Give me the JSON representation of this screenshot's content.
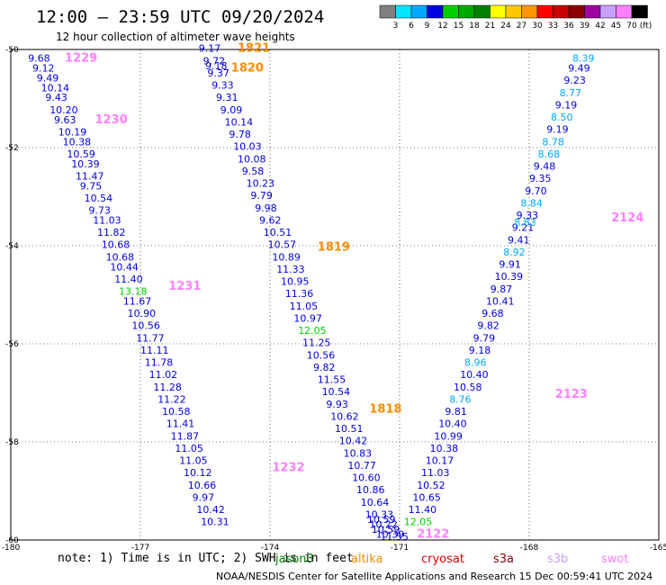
{
  "title": "12:00 – 23:59 UTC 09/20/2024",
  "subtitle": "12 hour collection of altimeter wave heights",
  "footer": "NOAA/NESDIS Center for Satellite Applications and Research   15 Dec 00:59:41 UTC 2024",
  "note": "note:  1) Time is in UTC; 2) SWH is in feet",
  "colorbar": {
    "unit": "(ft)",
    "ticks": [
      "3",
      "6",
      "9",
      "12",
      "15",
      "18",
      "21",
      "24",
      "27",
      "30",
      "33",
      "36",
      "39",
      "42",
      "45",
      "70"
    ],
    "colors": [
      "#7f7f7f",
      "#00e5ff",
      "#00a8ff",
      "#0000e0",
      "#00d000",
      "#00a800",
      "#008000",
      "#ffff00",
      "#ffc800",
      "#ff9600",
      "#ff0000",
      "#c80000",
      "#8b0000",
      "#a000a0",
      "#c8a0ff",
      "#ff80ff",
      "#000000"
    ]
  },
  "chart_data": {
    "type": "scatter",
    "xlim": [
      -180,
      -165
    ],
    "ylim": [
      -60,
      -50
    ],
    "x_ticks": [
      "-180",
      "-177",
      "-174",
      "-171",
      "-168",
      "-165"
    ],
    "y_ticks": [
      "-50",
      "-52",
      "-54",
      "-56",
      "-58",
      "-60"
    ],
    "legend": [
      {
        "name": "jason3",
        "color": "#008000"
      },
      {
        "name": "altika",
        "color": "#ff8c00"
      },
      {
        "name": "cryosat",
        "color": "#e00000"
      },
      {
        "name": "s3a",
        "color": "#8b0000"
      },
      {
        "name": "s3b",
        "color": "#c8a0ff"
      },
      {
        "name": "swot",
        "color": "#ff80ff"
      }
    ],
    "time_labels": [
      {
        "text": "1229",
        "lon": -178.75,
        "lat": -50.25,
        "color": "#ff80ff"
      },
      {
        "text": "1230",
        "lon": -178.05,
        "lat": -51.5,
        "color": "#ff80ff"
      },
      {
        "text": "1231",
        "lon": -176.35,
        "lat": -54.9,
        "color": "#ff80ff"
      },
      {
        "text": "1232",
        "lon": -173.95,
        "lat": -58.6,
        "color": "#ff80ff"
      },
      {
        "text": "1821",
        "lon": -174.75,
        "lat": -50.05,
        "color": "#ff8c00"
      },
      {
        "text": "1820",
        "lon": -174.9,
        "lat": -50.45,
        "color": "#ff8c00"
      },
      {
        "text": "1819",
        "lon": -172.9,
        "lat": -54.1,
        "color": "#ff8c00"
      },
      {
        "text": "1818",
        "lon": -171.7,
        "lat": -57.4,
        "color": "#ff8c00"
      },
      {
        "text": "2122",
        "lon": -170.6,
        "lat": -59.95,
        "color": "#ff80ff"
      },
      {
        "text": "2123",
        "lon": -167.4,
        "lat": -57.1,
        "color": "#ff80ff"
      },
      {
        "text": "2124",
        "lon": -166.1,
        "lat": -53.5,
        "color": "#ff80ff"
      }
    ],
    "series": [
      {
        "name": "track 1229-1232",
        "points": [
          {
            "lon": -179.6,
            "lat": -50.25,
            "v": "9.68",
            "c": "#0000e0"
          },
          {
            "lon": -179.5,
            "lat": -50.45,
            "v": "9.12",
            "c": "#0000e0"
          },
          {
            "lon": -179.4,
            "lat": -50.65,
            "v": "9.49",
            "c": "#0000e0"
          },
          {
            "lon": -179.3,
            "lat": -50.85,
            "v": "10.14",
            "c": "#0000e0"
          },
          {
            "lon": -179.2,
            "lat": -51.05,
            "v": "9.43",
            "c": "#0000e0"
          },
          {
            "lon": -179.1,
            "lat": -51.3,
            "v": "10.20",
            "c": "#0000e0"
          },
          {
            "lon": -179.0,
            "lat": -51.5,
            "v": "9.63",
            "c": "#0000e0"
          },
          {
            "lon": -178.9,
            "lat": -51.75,
            "v": "10.19",
            "c": "#0000e0"
          },
          {
            "lon": -178.8,
            "lat": -51.95,
            "v": "10.38",
            "c": "#0000e0"
          },
          {
            "lon": -178.7,
            "lat": -52.2,
            "v": "10.59",
            "c": "#0000e0"
          },
          {
            "lon": -178.6,
            "lat": -52.4,
            "v": "10.39",
            "c": "#0000e0"
          },
          {
            "lon": -178.5,
            "lat": -52.65,
            "v": "11.47",
            "c": "#0000e0"
          },
          {
            "lon": -178.4,
            "lat": -52.85,
            "v": "9.75",
            "c": "#0000e0"
          },
          {
            "lon": -178.3,
            "lat": -53.1,
            "v": "10.54",
            "c": "#0000e0"
          },
          {
            "lon": -178.2,
            "lat": -53.35,
            "v": "9.73",
            "c": "#0000e0"
          },
          {
            "lon": -178.1,
            "lat": -53.55,
            "v": "11.03",
            "c": "#0000e0"
          },
          {
            "lon": -178.0,
            "lat": -53.8,
            "v": "11.82",
            "c": "#0000e0"
          },
          {
            "lon": -177.9,
            "lat": -54.05,
            "v": "10.68",
            "c": "#0000e0"
          },
          {
            "lon": -177.8,
            "lat": -54.3,
            "v": "10.68",
            "c": "#0000e0"
          },
          {
            "lon": -177.7,
            "lat": -54.5,
            "v": "10.44",
            "c": "#0000e0"
          },
          {
            "lon": -177.6,
            "lat": -54.75,
            "v": "11.40",
            "c": "#0000e0"
          },
          {
            "lon": -177.5,
            "lat": -55.0,
            "v": "13.18",
            "c": "#00d000"
          },
          {
            "lon": -177.4,
            "lat": -55.2,
            "v": "11.67",
            "c": "#0000e0"
          },
          {
            "lon": -177.3,
            "lat": -55.45,
            "v": "10.90",
            "c": "#0000e0"
          },
          {
            "lon": -177.2,
            "lat": -55.7,
            "v": "10.56",
            "c": "#0000e0"
          },
          {
            "lon": -177.1,
            "lat": -55.95,
            "v": "11.77",
            "c": "#0000e0"
          },
          {
            "lon": -177.0,
            "lat": -56.2,
            "v": "11.11",
            "c": "#0000e0"
          },
          {
            "lon": -176.9,
            "lat": -56.45,
            "v": "11.78",
            "c": "#0000e0"
          },
          {
            "lon": -176.8,
            "lat": -56.7,
            "v": "11.02",
            "c": "#0000e0"
          },
          {
            "lon": -176.7,
            "lat": -56.95,
            "v": "11.28",
            "c": "#0000e0"
          },
          {
            "lon": -176.6,
            "lat": -57.2,
            "v": "11.22",
            "c": "#0000e0"
          },
          {
            "lon": -176.5,
            "lat": -57.45,
            "v": "10.58",
            "c": "#0000e0"
          },
          {
            "lon": -176.4,
            "lat": -57.7,
            "v": "11.41",
            "c": "#0000e0"
          },
          {
            "lon": -176.3,
            "lat": -57.95,
            "v": "11.87",
            "c": "#0000e0"
          },
          {
            "lon": -176.2,
            "lat": -58.2,
            "v": "11.05",
            "c": "#0000e0"
          },
          {
            "lon": -176.1,
            "lat": -58.45,
            "v": "11.05",
            "c": "#0000e0"
          },
          {
            "lon": -176.0,
            "lat": -58.7,
            "v": "10.12",
            "c": "#0000e0"
          },
          {
            "lon": -175.9,
            "lat": -58.95,
            "v": "10.66",
            "c": "#0000e0"
          },
          {
            "lon": -175.8,
            "lat": -59.2,
            "v": "9.97",
            "c": "#0000e0"
          },
          {
            "lon": -175.7,
            "lat": -59.45,
            "v": "10.42",
            "c": "#0000e0"
          },
          {
            "lon": -175.6,
            "lat": -59.7,
            "v": "10.31",
            "c": "#0000e0"
          }
        ]
      },
      {
        "name": "track 1818-1821",
        "points": [
          {
            "lon": -175.65,
            "lat": -50.05,
            "v": "9.17",
            "c": "#0000e0"
          },
          {
            "lon": -175.55,
            "lat": -50.3,
            "v": "9.72",
            "c": "#0000e0"
          },
          {
            "lon": -175.5,
            "lat": -50.4,
            "v": "9.18",
            "c": "#0000e0"
          },
          {
            "lon": -175.45,
            "lat": -50.55,
            "v": "9.37",
            "c": "#0000e0"
          },
          {
            "lon": -175.35,
            "lat": -50.8,
            "v": "9.33",
            "c": "#0000e0"
          },
          {
            "lon": -175.25,
            "lat": -51.05,
            "v": "9.31",
            "c": "#0000e0"
          },
          {
            "lon": -175.15,
            "lat": -51.3,
            "v": "9.09",
            "c": "#0000e0"
          },
          {
            "lon": -175.05,
            "lat": -51.55,
            "v": "10.14",
            "c": "#0000e0"
          },
          {
            "lon": -174.95,
            "lat": -51.8,
            "v": "9.78",
            "c": "#0000e0"
          },
          {
            "lon": -174.85,
            "lat": -52.05,
            "v": "10.03",
            "c": "#0000e0"
          },
          {
            "lon": -174.75,
            "lat": -52.3,
            "v": "10.08",
            "c": "#0000e0"
          },
          {
            "lon": -174.65,
            "lat": -52.55,
            "v": "9.58",
            "c": "#0000e0"
          },
          {
            "lon": -174.55,
            "lat": -52.8,
            "v": "10.23",
            "c": "#0000e0"
          },
          {
            "lon": -174.45,
            "lat": -53.05,
            "v": "9.79",
            "c": "#0000e0"
          },
          {
            "lon": -174.35,
            "lat": -53.3,
            "v": "9.98",
            "c": "#0000e0"
          },
          {
            "lon": -174.25,
            "lat": -53.55,
            "v": "9.62",
            "c": "#0000e0"
          },
          {
            "lon": -174.15,
            "lat": -53.8,
            "v": "10.51",
            "c": "#0000e0"
          },
          {
            "lon": -174.05,
            "lat": -54.05,
            "v": "10.57",
            "c": "#0000e0"
          },
          {
            "lon": -173.95,
            "lat": -54.3,
            "v": "10.89",
            "c": "#0000e0"
          },
          {
            "lon": -173.85,
            "lat": -54.55,
            "v": "11.33",
            "c": "#0000e0"
          },
          {
            "lon": -173.75,
            "lat": -54.8,
            "v": "10.95",
            "c": "#0000e0"
          },
          {
            "lon": -173.65,
            "lat": -55.05,
            "v": "11.36",
            "c": "#0000e0"
          },
          {
            "lon": -173.55,
            "lat": -55.3,
            "v": "11.05",
            "c": "#0000e0"
          },
          {
            "lon": -173.45,
            "lat": -55.55,
            "v": "10.97",
            "c": "#0000e0"
          },
          {
            "lon": -173.35,
            "lat": -55.8,
            "v": "12.05",
            "c": "#00d000"
          },
          {
            "lon": -173.25,
            "lat": -56.05,
            "v": "11.25",
            "c": "#0000e0"
          },
          {
            "lon": -173.15,
            "lat": -56.3,
            "v": "10.56",
            "c": "#0000e0"
          },
          {
            "lon": -173.0,
            "lat": -56.55,
            "v": "9.82",
            "c": "#0000e0"
          },
          {
            "lon": -172.9,
            "lat": -56.8,
            "v": "11.55",
            "c": "#0000e0"
          },
          {
            "lon": -172.8,
            "lat": -57.05,
            "v": "10.54",
            "c": "#0000e0"
          },
          {
            "lon": -172.7,
            "lat": -57.3,
            "v": "9.93",
            "c": "#0000e0"
          },
          {
            "lon": -172.6,
            "lat": -57.55,
            "v": "10.62",
            "c": "#0000e0"
          },
          {
            "lon": -172.5,
            "lat": -57.8,
            "v": "10.51",
            "c": "#0000e0"
          },
          {
            "lon": -172.4,
            "lat": -58.05,
            "v": "10.42",
            "c": "#0000e0"
          },
          {
            "lon": -172.3,
            "lat": -58.3,
            "v": "10.83",
            "c": "#0000e0"
          },
          {
            "lon": -172.2,
            "lat": -58.55,
            "v": "10.77",
            "c": "#0000e0"
          },
          {
            "lon": -172.1,
            "lat": -58.8,
            "v": "10.60",
            "c": "#0000e0"
          },
          {
            "lon": -172.0,
            "lat": -59.05,
            "v": "10.86",
            "c": "#0000e0"
          },
          {
            "lon": -171.9,
            "lat": -59.3,
            "v": "10.64",
            "c": "#0000e0"
          },
          {
            "lon": -171.8,
            "lat": -59.55,
            "v": "10.33",
            "c": "#0000e0"
          },
          {
            "lon": -171.75,
            "lat": -59.65,
            "v": "10.59",
            "c": "#0000e0"
          },
          {
            "lon": -171.7,
            "lat": -59.75,
            "v": "10.22",
            "c": "#0000e0"
          },
          {
            "lon": -171.65,
            "lat": -59.85,
            "v": "10.59",
            "c": "#0000e0"
          },
          {
            "lon": -171.55,
            "lat": -59.95,
            "v": "10.39",
            "c": "#0000e0"
          },
          {
            "lon": -171.45,
            "lat": -60.0,
            "v": "11.55",
            "c": "#0000e0"
          }
        ]
      },
      {
        "name": "track 2122-2124",
        "points": [
          {
            "lon": -170.9,
            "lat": -59.7,
            "v": "12.05",
            "c": "#00d000"
          },
          {
            "lon": -170.8,
            "lat": -59.45,
            "v": "11.40",
            "c": "#0000e0"
          },
          {
            "lon": -170.7,
            "lat": -59.2,
            "v": "10.65",
            "c": "#0000e0"
          },
          {
            "lon": -170.6,
            "lat": -58.95,
            "v": "10.52",
            "c": "#0000e0"
          },
          {
            "lon": -170.5,
            "lat": -58.7,
            "v": "11.03",
            "c": "#0000e0"
          },
          {
            "lon": -170.4,
            "lat": -58.45,
            "v": "10.17",
            "c": "#0000e0"
          },
          {
            "lon": -170.3,
            "lat": -58.2,
            "v": "10.38",
            "c": "#0000e0"
          },
          {
            "lon": -170.2,
            "lat": -57.95,
            "v": "10.99",
            "c": "#0000e0"
          },
          {
            "lon": -170.1,
            "lat": -57.7,
            "v": "10.40",
            "c": "#0000e0"
          },
          {
            "lon": -169.95,
            "lat": -57.45,
            "v": "9.81",
            "c": "#0000e0"
          },
          {
            "lon": -169.85,
            "lat": -57.2,
            "v": "8.76",
            "c": "#00a8ff"
          },
          {
            "lon": -169.75,
            "lat": -56.95,
            "v": "10.58",
            "c": "#0000e0"
          },
          {
            "lon": -169.6,
            "lat": -56.7,
            "v": "10.40",
            "c": "#0000e0"
          },
          {
            "lon": -169.5,
            "lat": -56.45,
            "v": "8.96",
            "c": "#00a8ff"
          },
          {
            "lon": -169.4,
            "lat": -56.2,
            "v": "9.18",
            "c": "#0000e0"
          },
          {
            "lon": -169.3,
            "lat": -55.95,
            "v": "9.79",
            "c": "#0000e0"
          },
          {
            "lon": -169.2,
            "lat": -55.7,
            "v": "9.82",
            "c": "#0000e0"
          },
          {
            "lon": -169.1,
            "lat": -55.45,
            "v": "9.68",
            "c": "#0000e0"
          },
          {
            "lon": -169.0,
            "lat": -55.2,
            "v": "10.41",
            "c": "#0000e0"
          },
          {
            "lon": -168.9,
            "lat": -54.95,
            "v": "9.87",
            "c": "#0000e0"
          },
          {
            "lon": -168.8,
            "lat": -54.7,
            "v": "10.39",
            "c": "#0000e0"
          },
          {
            "lon": -168.7,
            "lat": -54.45,
            "v": "9.91",
            "c": "#0000e0"
          },
          {
            "lon": -168.6,
            "lat": -54.2,
            "v": "8.92",
            "c": "#00a8ff"
          },
          {
            "lon": -168.5,
            "lat": -53.95,
            "v": "9.41",
            "c": "#0000e0"
          },
          {
            "lon": -168.4,
            "lat": -53.7,
            "v": "9.21",
            "c": "#0000e0"
          },
          {
            "lon": -168.35,
            "lat": -53.6,
            "v": "8.83",
            "c": "#00a8ff"
          },
          {
            "lon": -168.3,
            "lat": -53.45,
            "v": "9.33",
            "c": "#0000e0"
          },
          {
            "lon": -168.2,
            "lat": -53.2,
            "v": "8.84",
            "c": "#00a8ff"
          },
          {
            "lon": -168.1,
            "lat": -52.95,
            "v": "9.70",
            "c": "#0000e0"
          },
          {
            "lon": -168.0,
            "lat": -52.7,
            "v": "9.35",
            "c": "#0000e0"
          },
          {
            "lon": -167.9,
            "lat": -52.45,
            "v": "9.48",
            "c": "#0000e0"
          },
          {
            "lon": -167.8,
            "lat": -52.2,
            "v": "8.68",
            "c": "#00a8ff"
          },
          {
            "lon": -167.7,
            "lat": -51.95,
            "v": "8.78",
            "c": "#00a8ff"
          },
          {
            "lon": -167.6,
            "lat": -51.7,
            "v": "9.19",
            "c": "#0000e0"
          },
          {
            "lon": -167.5,
            "lat": -51.45,
            "v": "8.50",
            "c": "#00a8ff"
          },
          {
            "lon": -167.4,
            "lat": -51.2,
            "v": "9.19",
            "c": "#0000e0"
          },
          {
            "lon": -167.3,
            "lat": -50.95,
            "v": "8.77",
            "c": "#00a8ff"
          },
          {
            "lon": -167.2,
            "lat": -50.7,
            "v": "9.23",
            "c": "#0000e0"
          },
          {
            "lon": -167.1,
            "lat": -50.45,
            "v": "9.49",
            "c": "#0000e0"
          },
          {
            "lon": -167.0,
            "lat": -50.25,
            "v": "8.39",
            "c": "#00a8ff"
          }
        ]
      }
    ]
  }
}
